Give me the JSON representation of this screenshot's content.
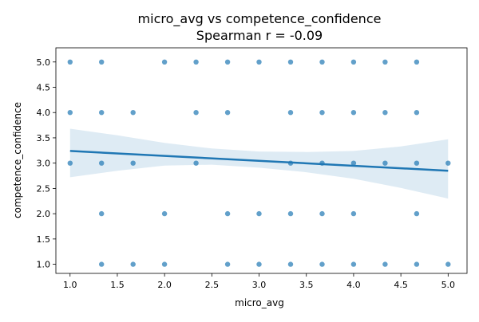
{
  "chart_data": {
    "type": "scatter",
    "title": "micro_avg vs competence_confidence",
    "subtitle": "Spearman r = -0.09",
    "xlabel": "micro_avg",
    "ylabel": "competence_confidence",
    "xlim": [
      0.85,
      5.2
    ],
    "ylim": [
      0.82,
      5.28
    ],
    "xticks": [
      "1.0",
      "1.5",
      "2.0",
      "2.5",
      "3.0",
      "3.5",
      "4.0",
      "4.5",
      "5.0"
    ],
    "yticks": [
      "1.0",
      "1.5",
      "2.0",
      "2.5",
      "3.0",
      "3.5",
      "4.0",
      "4.5",
      "5.0"
    ],
    "grid": false,
    "legend": "none",
    "colors": {
      "points": "#1f77b4",
      "regression_line": "#1f77b4",
      "confidence_band": "#1f77b4"
    },
    "points": [
      {
        "x": 1.0,
        "y": 5
      },
      {
        "x": 1.333,
        "y": 5
      },
      {
        "x": 2.0,
        "y": 5
      },
      {
        "x": 2.333,
        "y": 5
      },
      {
        "x": 2.667,
        "y": 5
      },
      {
        "x": 3.0,
        "y": 5
      },
      {
        "x": 3.333,
        "y": 5
      },
      {
        "x": 3.667,
        "y": 5
      },
      {
        "x": 4.0,
        "y": 5
      },
      {
        "x": 4.333,
        "y": 5
      },
      {
        "x": 4.667,
        "y": 5
      },
      {
        "x": 1.0,
        "y": 4
      },
      {
        "x": 1.333,
        "y": 4
      },
      {
        "x": 1.667,
        "y": 4
      },
      {
        "x": 2.333,
        "y": 4
      },
      {
        "x": 2.667,
        "y": 4
      },
      {
        "x": 3.333,
        "y": 4
      },
      {
        "x": 3.667,
        "y": 4
      },
      {
        "x": 4.0,
        "y": 4
      },
      {
        "x": 4.333,
        "y": 4
      },
      {
        "x": 4.667,
        "y": 4
      },
      {
        "x": 1.0,
        "y": 3
      },
      {
        "x": 1.333,
        "y": 3
      },
      {
        "x": 1.667,
        "y": 3
      },
      {
        "x": 2.333,
        "y": 3
      },
      {
        "x": 3.333,
        "y": 3
      },
      {
        "x": 3.667,
        "y": 3
      },
      {
        "x": 4.0,
        "y": 3
      },
      {
        "x": 4.333,
        "y": 3
      },
      {
        "x": 4.667,
        "y": 3
      },
      {
        "x": 5.0,
        "y": 3
      },
      {
        "x": 1.333,
        "y": 2
      },
      {
        "x": 2.0,
        "y": 2
      },
      {
        "x": 2.667,
        "y": 2
      },
      {
        "x": 3.0,
        "y": 2
      },
      {
        "x": 3.333,
        "y": 2
      },
      {
        "x": 3.667,
        "y": 2
      },
      {
        "x": 4.0,
        "y": 2
      },
      {
        "x": 4.667,
        "y": 2
      },
      {
        "x": 1.333,
        "y": 1
      },
      {
        "x": 1.667,
        "y": 1
      },
      {
        "x": 2.0,
        "y": 1
      },
      {
        "x": 2.667,
        "y": 1
      },
      {
        "x": 3.0,
        "y": 1
      },
      {
        "x": 3.333,
        "y": 1
      },
      {
        "x": 3.667,
        "y": 1
      },
      {
        "x": 4.0,
        "y": 1
      },
      {
        "x": 4.333,
        "y": 1
      },
      {
        "x": 4.667,
        "y": 1
      },
      {
        "x": 5.0,
        "y": 1
      }
    ],
    "regression": {
      "x": [
        1.0,
        5.0
      ],
      "y": [
        3.24,
        2.85
      ]
    },
    "confidence_band": [
      {
        "x": 1.0,
        "lower": 2.72,
        "upper": 3.68
      },
      {
        "x": 1.5,
        "lower": 2.85,
        "upper": 3.55
      },
      {
        "x": 2.0,
        "lower": 2.95,
        "upper": 3.4
      },
      {
        "x": 2.5,
        "lower": 2.97,
        "upper": 3.29
      },
      {
        "x": 3.0,
        "lower": 2.91,
        "upper": 3.23
      },
      {
        "x": 3.5,
        "lower": 2.82,
        "upper": 3.22
      },
      {
        "x": 4.0,
        "lower": 2.69,
        "upper": 3.24
      },
      {
        "x": 4.5,
        "lower": 2.51,
        "upper": 3.33
      },
      {
        "x": 5.0,
        "lower": 2.3,
        "upper": 3.47
      }
    ]
  }
}
